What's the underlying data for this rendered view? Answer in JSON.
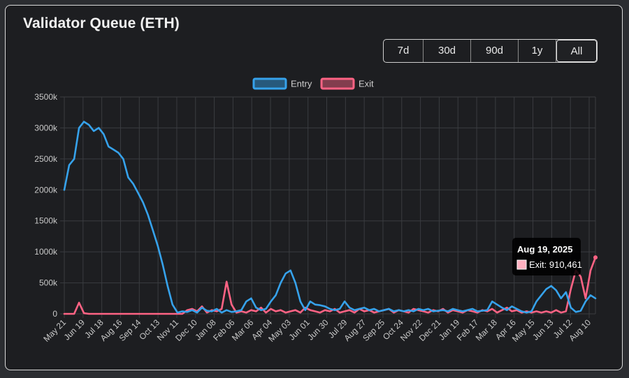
{
  "header": {
    "title": "Validator Queue (ETH)"
  },
  "range_buttons": [
    {
      "label": "7d"
    },
    {
      "label": "30d"
    },
    {
      "label": "90d"
    },
    {
      "label": "1y"
    },
    {
      "label": "All"
    }
  ],
  "active_range": "All",
  "colors": {
    "entry": "#36a2eb",
    "exit": "#ff6384",
    "grid": "#3a3c40",
    "text": "#c9c9c9"
  },
  "tooltip": {
    "date": "Aug 19, 2025",
    "label": "Exit: 910,461"
  },
  "chart_data": {
    "type": "line",
    "title": "",
    "xlabel": "",
    "ylabel": "",
    "ylim": [
      0,
      3500000
    ],
    "y_ticks": [
      "0",
      "500k",
      "1000k",
      "1500k",
      "2000k",
      "2500k",
      "3000k",
      "3500k"
    ],
    "x_ticks": [
      "May 21",
      "Jun 19",
      "Jul 18",
      "Aug 16",
      "Sep 14",
      "Oct 13",
      "Nov 11",
      "Dec 10",
      "Jan 08",
      "Feb 06",
      "Mar 06",
      "Apr 04",
      "May 03",
      "Jun 01",
      "Jun 30",
      "Jul 29",
      "Aug 27",
      "Sep 25",
      "Oct 24",
      "Nov 22",
      "Dec 21",
      "Jan 19",
      "Feb 17",
      "Mar 18",
      "Apr 16",
      "May 15",
      "Jun 13",
      "Jul 12",
      "Aug 10"
    ],
    "legend": [
      "Entry",
      "Exit"
    ],
    "legend_position": "top-center",
    "grid": true,
    "series": [
      {
        "name": "Entry",
        "color": "#36a2eb",
        "values": [
          2000000,
          2400000,
          2500000,
          3000000,
          3100000,
          3050000,
          2950000,
          3000000,
          2900000,
          2700000,
          2650000,
          2600000,
          2500000,
          2200000,
          2100000,
          1950000,
          1800000,
          1600000,
          1350000,
          1100000,
          800000,
          450000,
          150000,
          20000,
          40000,
          30000,
          60000,
          20000,
          100000,
          50000,
          40000,
          80000,
          20000,
          60000,
          30000,
          40000,
          60000,
          200000,
          250000,
          100000,
          60000,
          80000,
          200000,
          300000,
          500000,
          650000,
          700000,
          500000,
          200000,
          60000,
          200000,
          150000,
          140000,
          120000,
          80000,
          60000,
          80000,
          200000,
          100000,
          60000,
          80000,
          100000,
          60000,
          80000,
          40000,
          60000,
          80000,
          40000,
          60000,
          40000,
          60000,
          40000,
          80000,
          60000,
          80000,
          40000,
          50000,
          60000,
          40000,
          80000,
          60000,
          40000,
          60000,
          80000,
          40000,
          50000,
          60000,
          200000,
          150000,
          100000,
          60000,
          120000,
          80000,
          40000,
          20000,
          40000,
          200000,
          300000,
          400000,
          450000,
          380000,
          250000,
          350000,
          100000,
          30000,
          50000,
          200000,
          300000,
          250000
        ]
      },
      {
        "name": "Exit",
        "color": "#ff6384",
        "values": [
          0,
          0,
          0,
          180000,
          10000,
          0,
          0,
          0,
          0,
          0,
          0,
          0,
          0,
          0,
          0,
          0,
          0,
          0,
          0,
          0,
          0,
          0,
          0,
          0,
          0,
          60000,
          80000,
          40000,
          120000,
          20000,
          60000,
          40000,
          80000,
          520000,
          150000,
          20000,
          40000,
          20000,
          60000,
          40000,
          100000,
          20000,
          80000,
          40000,
          60000,
          20000,
          40000,
          60000,
          20000,
          100000,
          60000,
          40000,
          20000,
          60000,
          40000,
          80000,
          20000,
          40000,
          60000,
          20000,
          80000,
          40000,
          60000,
          20000,
          40000,
          60000,
          80000,
          20000,
          60000,
          40000,
          20000,
          80000,
          60000,
          40000,
          20000,
          60000,
          40000,
          80000,
          20000,
          60000,
          40000,
          20000,
          60000,
          40000,
          20000,
          60000,
          40000,
          80000,
          20000,
          60000,
          100000,
          40000,
          60000,
          20000,
          40000,
          20000,
          40000,
          20000,
          40000,
          20000,
          60000,
          20000,
          40000,
          400000,
          700000,
          600000,
          250000,
          700000,
          910461
        ]
      }
    ]
  }
}
